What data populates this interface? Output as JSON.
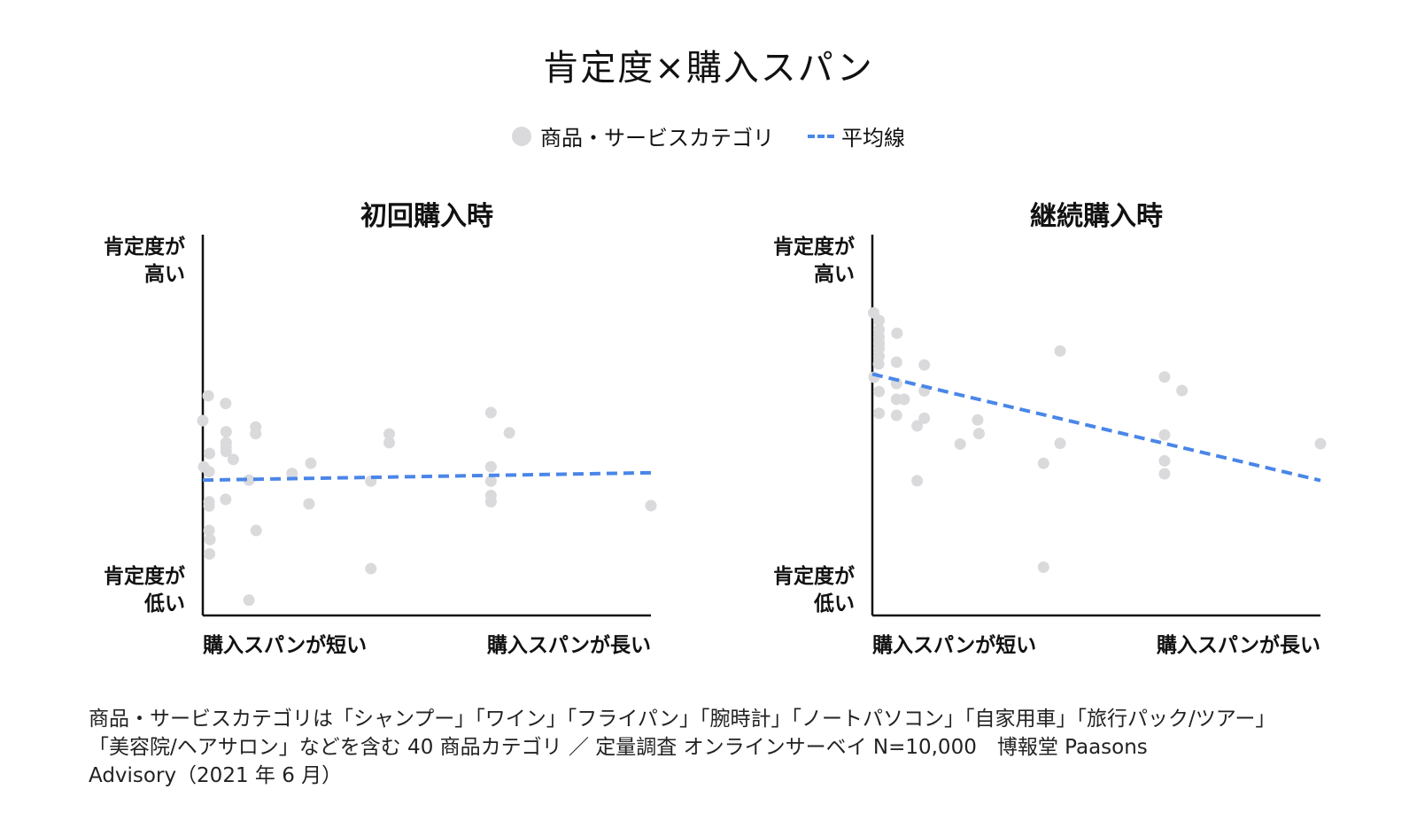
{
  "title": "肯定度×購入スパン",
  "legend": {
    "category": "商品・サービスカテゴリ",
    "average": "平均線"
  },
  "colors": {
    "points": "#dadadd",
    "average_line": "#4a86e8",
    "axis": "#111111"
  },
  "chart_data": [
    {
      "type": "scatter",
      "title": "初回購入時",
      "ylabel_top": [
        "肯定度が",
        "高い"
      ],
      "ylabel_bottom": [
        "肯定度が",
        "低い"
      ],
      "xlabel_left": "購入スパンが短い",
      "xlabel_right": "購入スパンが長い",
      "xlim": [
        0,
        100
      ],
      "ylim": [
        0,
        100
      ],
      "points": [
        [
          0,
          55.7
        ],
        [
          1.2,
          62.8
        ],
        [
          5.1,
          60.6
        ],
        [
          0.2,
          42.5
        ],
        [
          1.5,
          46.3
        ],
        [
          1.4,
          41.1
        ],
        [
          1.4,
          31.3
        ],
        [
          1.4,
          32.5
        ],
        [
          1.4,
          24.3
        ],
        [
          1.6,
          21.7
        ],
        [
          1.5,
          17.6
        ],
        [
          5.2,
          52.5
        ],
        [
          5.2,
          49.4
        ],
        [
          5.2,
          48.1
        ],
        [
          5.2,
          46.9
        ],
        [
          6.8,
          44.6
        ],
        [
          5.1,
          33.2
        ],
        [
          10.3,
          38.7
        ],
        [
          11.8,
          53.9
        ],
        [
          11.8,
          52.0
        ],
        [
          11.9,
          24.3
        ],
        [
          10.3,
          4.4
        ],
        [
          19.9,
          40.6
        ],
        [
          24.1,
          43.5
        ],
        [
          23.7,
          31.9
        ],
        [
          37.5,
          38.4
        ],
        [
          37.5,
          13.4
        ],
        [
          41.6,
          51.9
        ],
        [
          41.6,
          49.4
        ],
        [
          64.3,
          58.0
        ],
        [
          68.4,
          52.2
        ],
        [
          64.3,
          42.5
        ],
        [
          64.3,
          38.4
        ],
        [
          64.3,
          34.3
        ],
        [
          64.3,
          32.5
        ],
        [
          100,
          31.4
        ]
      ],
      "average_line": [
        [
          0,
          38.7
        ],
        [
          100,
          40.8
        ]
      ]
    },
    {
      "type": "scatter",
      "title": "継続購入時",
      "ylabel_top": [
        "肯定度が",
        "高い"
      ],
      "ylabel_bottom": [
        "肯定度が",
        "低い"
      ],
      "xlabel_left": "購入スパンが短い",
      "xlabel_right": "購入スパンが長い",
      "xlim": [
        0,
        100
      ],
      "ylim": [
        0,
        100
      ],
      "points": [
        [
          0.3,
          86.5
        ],
        [
          1.5,
          84.3
        ],
        [
          1.5,
          81.7
        ],
        [
          1.5,
          79.6
        ],
        [
          1.5,
          77.8
        ],
        [
          1.5,
          76.3
        ],
        [
          1.5,
          74.1
        ],
        [
          5.5,
          80.7
        ],
        [
          1.4,
          71.9
        ],
        [
          0.4,
          68.1
        ],
        [
          5.4,
          72.4
        ],
        [
          5.4,
          66.3
        ],
        [
          11.6,
          71.6
        ],
        [
          1.5,
          64.0
        ],
        [
          5.4,
          61.8
        ],
        [
          7.1,
          61.8
        ],
        [
          1.5,
          57.8
        ],
        [
          11.6,
          64.2
        ],
        [
          5.4,
          57.2
        ],
        [
          11.6,
          56.4
        ],
        [
          10.0,
          54.2
        ],
        [
          23.5,
          55.9
        ],
        [
          19.6,
          49.0
        ],
        [
          23.8,
          52.0
        ],
        [
          10.0,
          38.5
        ],
        [
          41.9,
          75.6
        ],
        [
          41.9,
          49.2
        ],
        [
          38.2,
          43.5
        ],
        [
          38.2,
          13.8
        ],
        [
          65.2,
          68.2
        ],
        [
          69.1,
          64.3
        ],
        [
          65.2,
          51.6
        ],
        [
          65.2,
          44.2
        ],
        [
          65.2,
          40.5
        ],
        [
          100,
          49.1
        ]
      ],
      "average_line": [
        [
          0,
          69.0
        ],
        [
          100,
          38.6
        ]
      ]
    }
  ],
  "footnote": {
    "line1": "商品・サービスカテゴリは「シャンプー」「ワイン」「フライパン」「腕時計」「ノートパソコン」「自家用車」「旅行パック/ツアー」",
    "line2": "「美容院/ヘアサロン」などを含む 40 商品カテゴリ ／ 定量調査 オンラインサーベイ N=10,000　博報堂 Paasons",
    "line3": "Advisory（2021 年 6 月）"
  }
}
